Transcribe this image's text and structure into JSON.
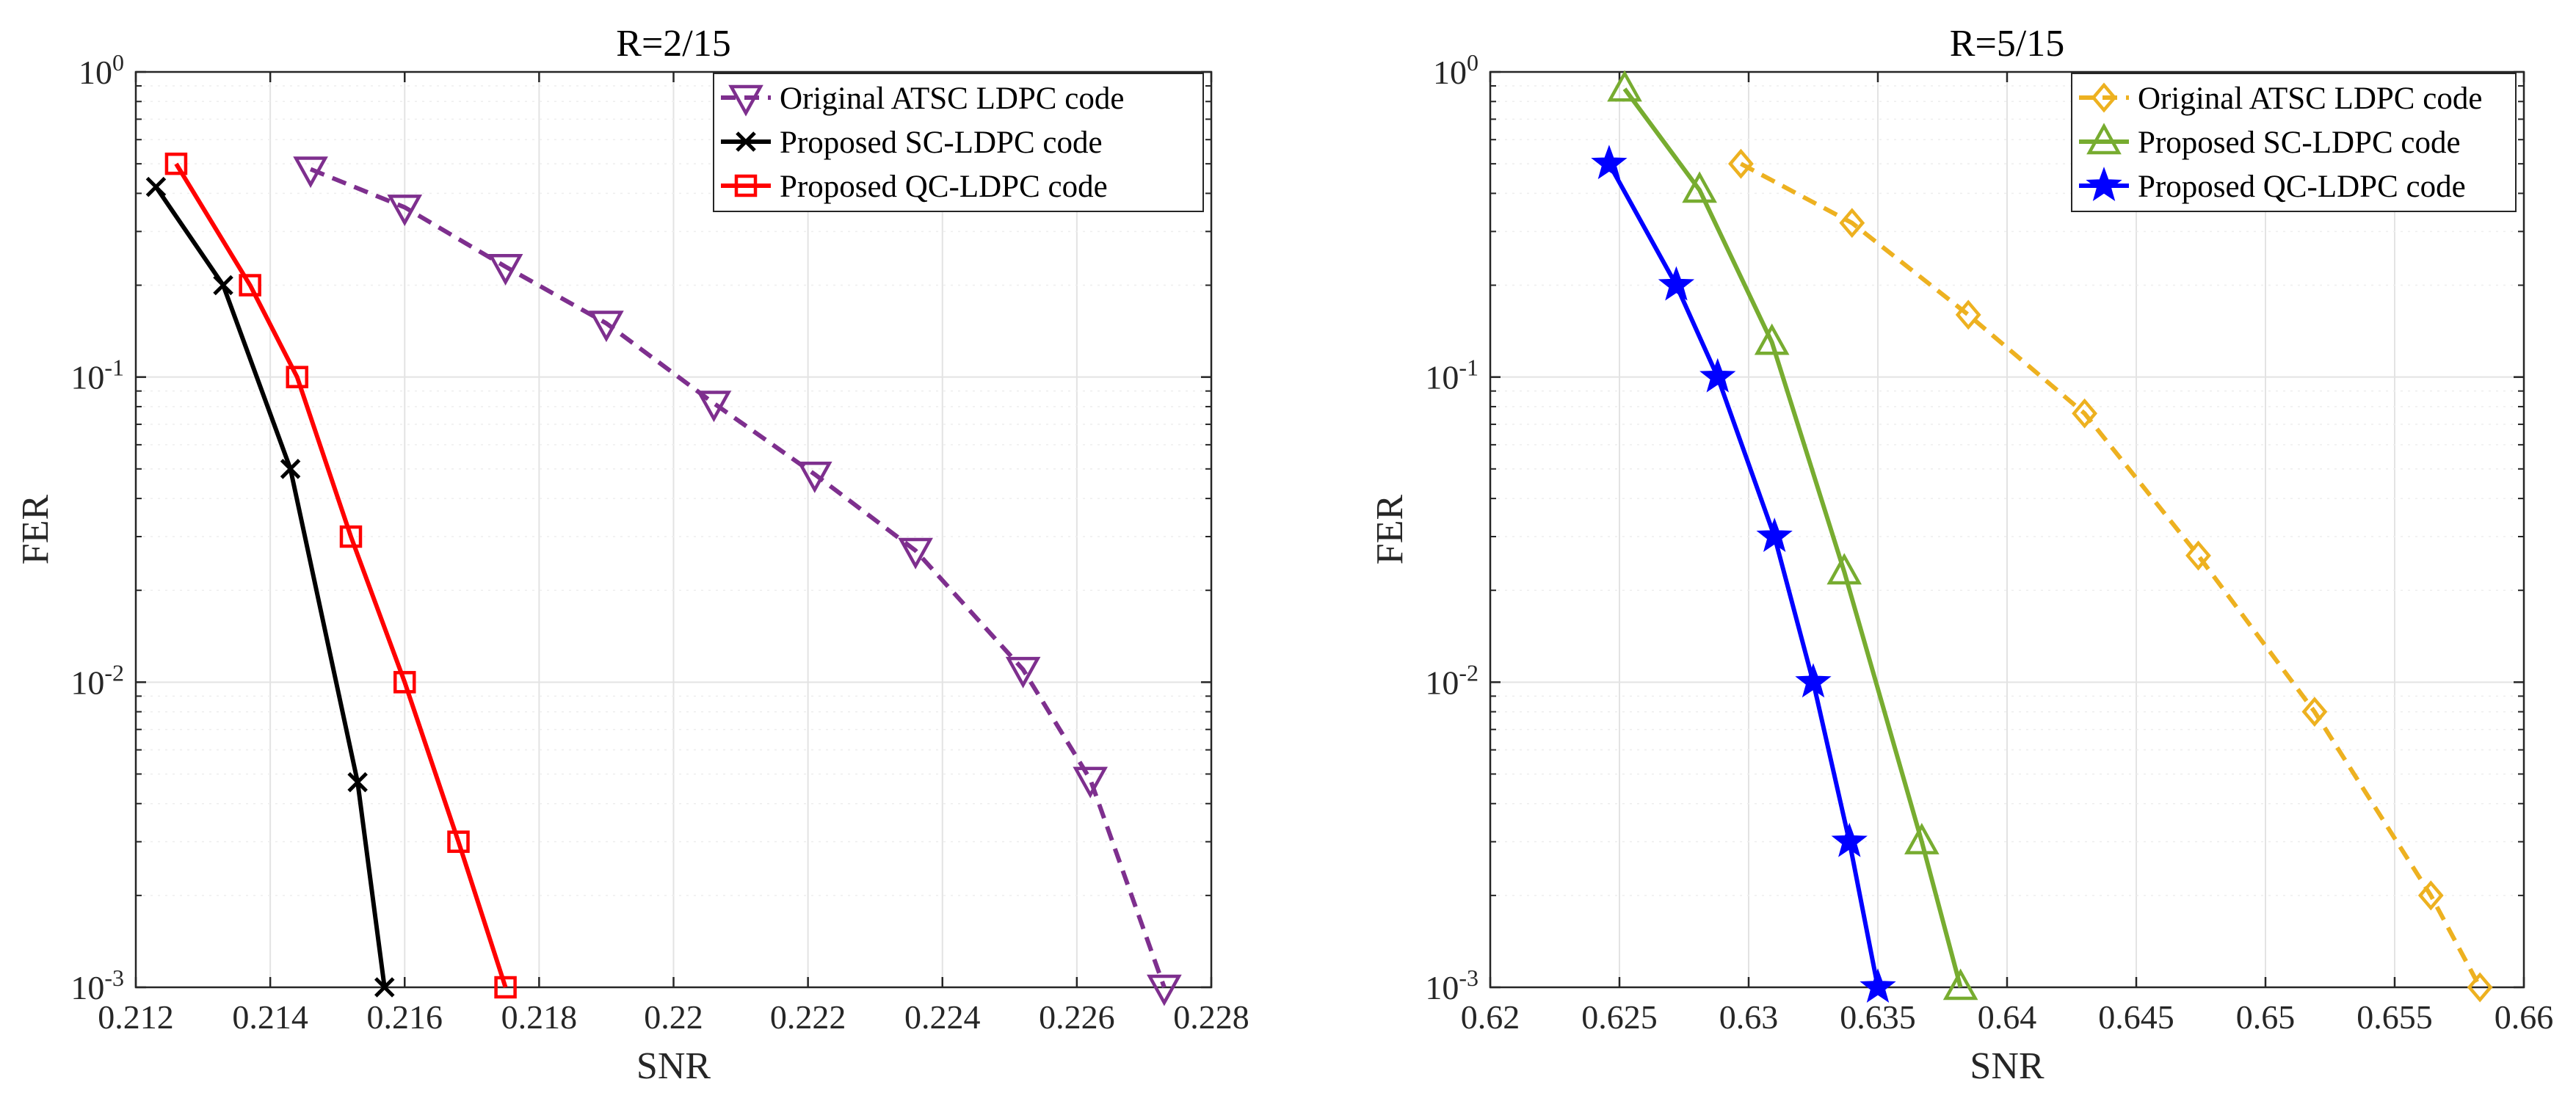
{
  "chart_data": [
    {
      "type": "line",
      "title": "R=2/15",
      "xlabel": "SNR",
      "ylabel": "FER",
      "yscale": "log",
      "xlim": [
        0.212,
        0.228
      ],
      "ylim": [
        0.001,
        1
      ],
      "xticks": [
        0.212,
        0.214,
        0.216,
        0.218,
        0.22,
        0.222,
        0.224,
        0.226,
        0.228
      ],
      "xtick_labels": [
        "0.212",
        "0.214",
        "0.216",
        "0.218",
        "0.22",
        "0.222",
        "0.224",
        "0.226",
        "0.228"
      ],
      "yticks": [
        {
          "value": 1,
          "base": "10",
          "exp": "0"
        },
        {
          "value": 0.1,
          "base": "10",
          "exp": "-1"
        },
        {
          "value": 0.01,
          "base": "10",
          "exp": "-2"
        },
        {
          "value": 0.001,
          "base": "10",
          "exp": "-3"
        }
      ],
      "grid": true,
      "legend_position": "top-right",
      "series": [
        {
          "name": "Original ATSC LDPC code",
          "color": "#7E2F8E",
          "dash": "dashed",
          "marker": "triangle-down",
          "x": [
            0.2146,
            0.216,
            0.2175,
            0.219,
            0.2206,
            0.2221,
            0.2236,
            0.2252,
            0.2262,
            0.2273
          ],
          "y": [
            0.48,
            0.36,
            0.23,
            0.15,
            0.082,
            0.048,
            0.027,
            0.011,
            0.0048,
            0.001
          ]
        },
        {
          "name": "Proposed SC-LDPC code",
          "color": "#000000",
          "dash": "solid",
          "marker": "x",
          "x": [
            0.2123,
            0.2133,
            0.2143,
            0.2153,
            0.2157
          ],
          "y": [
            0.42,
            0.2,
            0.05,
            0.0047,
            0.001
          ]
        },
        {
          "name": "Proposed QC-LDPC code",
          "color": "#FF0000",
          "dash": "solid",
          "marker": "square",
          "x": [
            0.2126,
            0.2137,
            0.2144,
            0.2152,
            0.216,
            0.2168,
            0.2175
          ],
          "y": [
            0.5,
            0.2,
            0.1,
            0.03,
            0.01,
            0.003,
            0.001
          ]
        }
      ]
    },
    {
      "type": "line",
      "title": "R=5/15",
      "xlabel": "SNR",
      "ylabel": "FER",
      "yscale": "log",
      "xlim": [
        0.62,
        0.66
      ],
      "ylim": [
        0.001,
        1
      ],
      "xticks": [
        0.62,
        0.625,
        0.63,
        0.635,
        0.64,
        0.645,
        0.65,
        0.655,
        0.66
      ],
      "xtick_labels": [
        "0.62",
        "0.625",
        "0.63",
        "0.635",
        "0.64",
        "0.645",
        "0.65",
        "0.655",
        "0.66"
      ],
      "yticks": [
        {
          "value": 1,
          "base": "10",
          "exp": "0"
        },
        {
          "value": 0.1,
          "base": "10",
          "exp": "-1"
        },
        {
          "value": 0.01,
          "base": "10",
          "exp": "-2"
        },
        {
          "value": 0.001,
          "base": "10",
          "exp": "-3"
        }
      ],
      "grid": true,
      "legend_position": "top-right",
      "series": [
        {
          "name": "Original ATSC LDPC code",
          "color": "#EDB120",
          "dash": "dashed",
          "marker": "diamond",
          "x": [
            0.6297,
            0.634,
            0.6385,
            0.643,
            0.6474,
            0.6519,
            0.6564,
            0.6583
          ],
          "y": [
            0.5,
            0.32,
            0.16,
            0.076,
            0.026,
            0.008,
            0.002,
            0.001
          ]
        },
        {
          "name": "Proposed SC-LDPC code",
          "color": "#77AC30",
          "dash": "solid",
          "marker": "triangle-up",
          "x": [
            0.6252,
            0.6281,
            0.6309,
            0.6337,
            0.6367,
            0.6382
          ],
          "y": [
            0.88,
            0.41,
            0.13,
            0.023,
            0.003,
            0.001
          ]
        },
        {
          "name": "Proposed QC-LDPC code",
          "color": "#0000FF",
          "dash": "solid",
          "marker": "star",
          "x": [
            0.6246,
            0.6272,
            0.6288,
            0.631,
            0.6325,
            0.6339,
            0.635
          ],
          "y": [
            0.5,
            0.2,
            0.1,
            0.03,
            0.01,
            0.003,
            0.001
          ]
        }
      ]
    }
  ]
}
